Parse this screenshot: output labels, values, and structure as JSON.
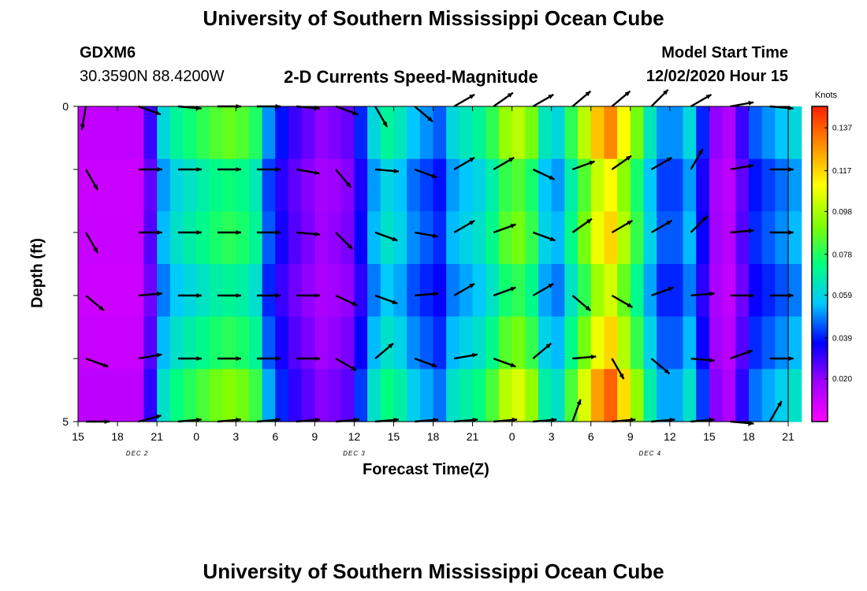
{
  "page_title": "University of Southern Mississippi Ocean Cube",
  "footer_title": "University of Southern Mississippi Ocean Cube",
  "station": {
    "id": "GDXM6",
    "coords": "30.3590N 88.4200W"
  },
  "chart_title": "2-D Currents Speed-Magnitude",
  "model_start": {
    "label": "Model Start Time",
    "value": "12/02/2020 Hour 15"
  },
  "chart_data": {
    "type": "heatmap",
    "title": "2-D Currents Speed-Magnitude",
    "xlabel": "Forecast Time(Z)",
    "ylabel": "Depth (ft)",
    "x_tick_labels": [
      "15",
      "18",
      "21",
      "0",
      "3",
      "6",
      "9",
      "12",
      "15",
      "18",
      "21",
      "0",
      "3",
      "6",
      "9",
      "12",
      "15",
      "18",
      "21"
    ],
    "x_range_hours": [
      0,
      54
    ],
    "day_labels": [
      {
        "text": "DEC 2",
        "hour": 4.5
      },
      {
        "text": "DEC 3",
        "hour": 21
      },
      {
        "text": "DEC 4",
        "hour": 43.5
      }
    ],
    "ylim": [
      0,
      5
    ],
    "y_tick_labels": [
      {
        "text": "0",
        "value": 0
      },
      {
        "text": "5",
        "value": 5
      }
    ],
    "colorbar": {
      "label": "Knots",
      "ticks": [
        "0.137",
        "0.117",
        "0.098",
        "0.078",
        "0.059",
        "0.039",
        "0.020"
      ],
      "tick_values": [
        0.137,
        0.117,
        0.098,
        0.078,
        0.059,
        0.039,
        0.02
      ],
      "range": [
        0.0,
        0.147
      ]
    },
    "colors": [
      "#ff00ff",
      "#a000ff",
      "#0000ff",
      "#00c8ff",
      "#00ff80",
      "#80ff00",
      "#ffff00",
      "#ff9000",
      "#ff2000"
    ],
    "speed_profile_knots": [
      0.012,
      0.012,
      0.012,
      0.012,
      0.012,
      0.03,
      0.06,
      0.07,
      0.075,
      0.08,
      0.085,
      0.088,
      0.085,
      0.078,
      0.05,
      0.038,
      0.03,
      0.025,
      0.02,
      0.022,
      0.025,
      0.04,
      0.06,
      0.07,
      0.065,
      0.055,
      0.05,
      0.045,
      0.06,
      0.065,
      0.07,
      0.08,
      0.095,
      0.1,
      0.09,
      0.065,
      0.06,
      0.08,
      0.1,
      0.12,
      0.13,
      0.11,
      0.09,
      0.065,
      0.05,
      0.05,
      0.06,
      0.04,
      0.02,
      0.015,
      0.03,
      0.045,
      0.05,
      0.055,
      0.06
    ],
    "depth_factor": [
      1.0,
      0.85,
      0.9,
      0.8,
      0.9,
      1.05
    ],
    "arrow_hours": [
      0,
      4,
      7,
      10,
      13,
      16,
      19,
      22,
      25,
      28,
      31,
      34,
      37,
      40,
      43,
      46,
      49,
      52
    ],
    "arrow_depth_ft": [
      0,
      1,
      2,
      3,
      4,
      5
    ],
    "arrow_angles_deg": [
      [
        100,
        20,
        5,
        0,
        0,
        5,
        20,
        60,
        40,
        -30,
        -35,
        -30,
        -40,
        -40,
        -45,
        -30,
        -10,
        5
      ],
      [
        60,
        0,
        0,
        0,
        0,
        10,
        50,
        5,
        20,
        -30,
        -30,
        25,
        -20,
        -35,
        -30,
        -60,
        -10,
        0
      ],
      [
        60,
        0,
        0,
        0,
        0,
        5,
        45,
        20,
        10,
        -30,
        -20,
        20,
        -35,
        -30,
        -30,
        -45,
        -5,
        0
      ],
      [
        40,
        -5,
        0,
        0,
        0,
        0,
        25,
        20,
        -5,
        -30,
        -20,
        -30,
        40,
        30,
        -20,
        -5,
        0,
        0
      ],
      [
        20,
        -10,
        0,
        0,
        0,
        0,
        30,
        -40,
        20,
        -10,
        20,
        -40,
        -5,
        60,
        40,
        5,
        -20,
        0
      ],
      [
        0,
        -15,
        -5,
        -5,
        -5,
        -5,
        -5,
        -5,
        -5,
        -5,
        -5,
        -5,
        -70,
        -5,
        -5,
        -5,
        5,
        -60
      ]
    ]
  }
}
